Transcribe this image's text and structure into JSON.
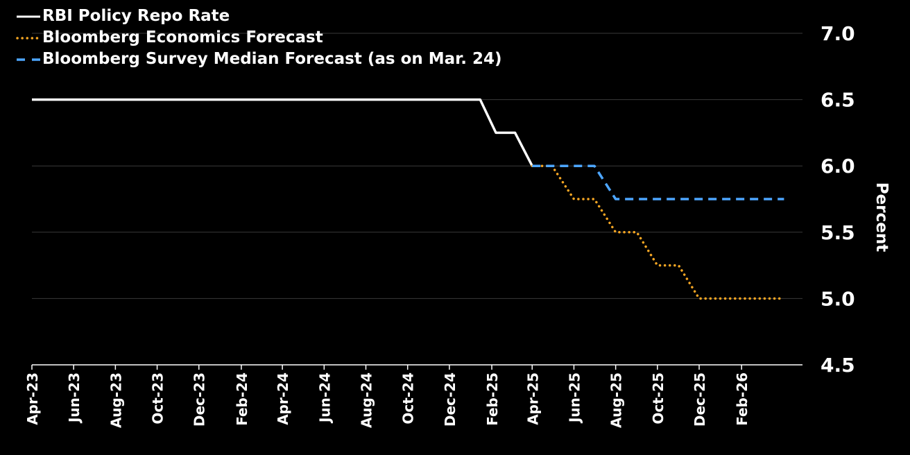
{
  "chart_data": {
    "type": "line",
    "title": "",
    "xlabel": "",
    "ylabel": "Percent",
    "ylim": [
      4.5,
      7.0
    ],
    "yticks": [
      "7.0",
      "6.5",
      "6.0",
      "5.5",
      "5.0",
      "4.5"
    ],
    "grid": true,
    "legend_position": "top-left",
    "x_ticks": [
      "Apr-23",
      "Jun-23",
      "Aug-23",
      "Oct-23",
      "Dec-23",
      "Feb-24",
      "Apr-24",
      "Jun-24",
      "Aug-24",
      "Oct-24",
      "Dec-24",
      "Feb-25",
      "Apr-25",
      "Jun-25",
      "Aug-25",
      "Oct-25",
      "Dec-25",
      "Feb-26"
    ],
    "x_range": [
      "2023-04-01",
      "2026-05-01"
    ],
    "series": [
      {
        "name": "RBI Policy Repo Rate",
        "style": "solid",
        "color": "#ffffff",
        "points": [
          [
            "2023-04-01",
            6.5
          ],
          [
            "2025-01-15",
            6.5
          ],
          [
            "2025-02-07",
            6.25
          ],
          [
            "2025-03-07",
            6.25
          ],
          [
            "2025-04-01",
            6.0
          ]
        ]
      },
      {
        "name": "Bloomberg Economics Forecast",
        "style": "dotted",
        "color": "#f5a623",
        "points": [
          [
            "2025-04-01",
            6.0
          ],
          [
            "2025-04-30",
            6.0
          ],
          [
            "2025-06-01",
            5.75
          ],
          [
            "2025-07-01",
            5.75
          ],
          [
            "2025-08-01",
            5.5
          ],
          [
            "2025-09-01",
            5.5
          ],
          [
            "2025-10-01",
            5.25
          ],
          [
            "2025-11-01",
            5.25
          ],
          [
            "2025-12-01",
            5.0
          ],
          [
            "2026-04-01",
            5.0
          ]
        ]
      },
      {
        "name": "Bloomberg Survey Median Forecast (as on Mar. 24)",
        "style": "dashed",
        "color": "#4da6ff",
        "points": [
          [
            "2025-04-01",
            6.0
          ],
          [
            "2025-07-01",
            6.0
          ],
          [
            "2025-08-01",
            5.75
          ],
          [
            "2026-04-04",
            5.75
          ]
        ]
      }
    ]
  }
}
